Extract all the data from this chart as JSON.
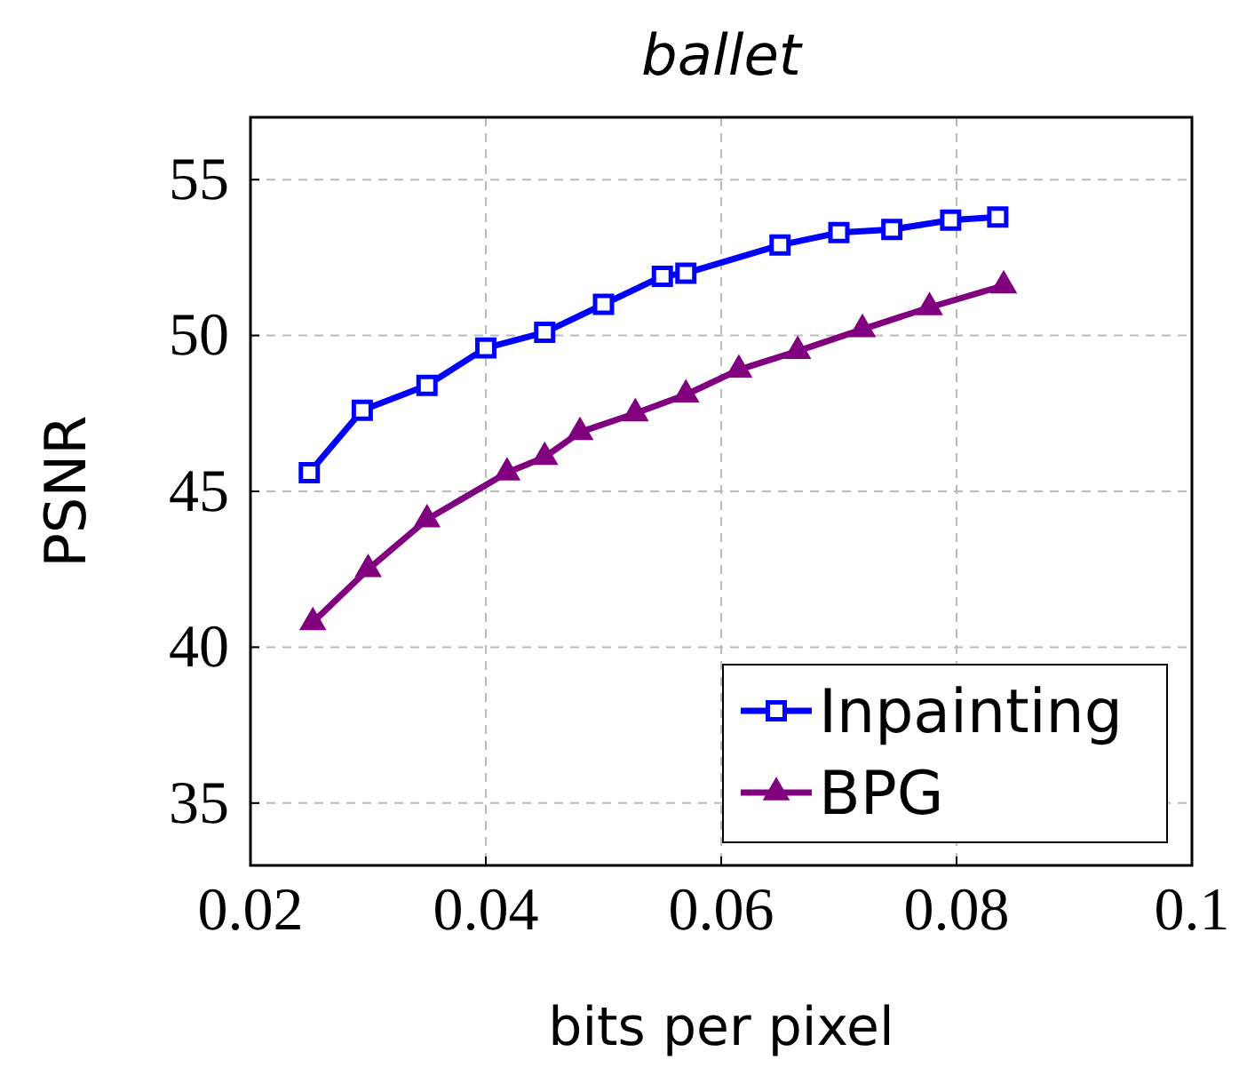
{
  "chart_data": {
    "type": "line",
    "title": "ballet",
    "xlabel": "bits per pixel",
    "ylabel": "PSNR",
    "xlim": [
      0.02,
      0.1
    ],
    "xticks": [
      0.02,
      0.04,
      0.06,
      0.08,
      0.1
    ],
    "ylim": [
      33,
      57
    ],
    "yticks": [
      35,
      40,
      45,
      50,
      55
    ],
    "grid": true,
    "legend": "bottom right",
    "series": [
      {
        "name": "Inpainting",
        "color": "#0000ff",
        "marker": "square",
        "x": [
          0.025,
          0.0295,
          0.035,
          0.04,
          0.045,
          0.05,
          0.055,
          0.057,
          0.065,
          0.07,
          0.0745,
          0.0795,
          0.0835
        ],
        "values": [
          45.6,
          47.6,
          48.4,
          49.6,
          50.1,
          51.0,
          51.9,
          52.0,
          52.9,
          53.3,
          53.4,
          53.7,
          53.8
        ]
      },
      {
        "name": "BPG",
        "color": "#800080",
        "marker": "triangle",
        "x": [
          0.0253,
          0.03,
          0.035,
          0.0418,
          0.045,
          0.048,
          0.0527,
          0.057,
          0.0615,
          0.0665,
          0.072,
          0.0777,
          0.084
        ],
        "values": [
          40.8,
          42.5,
          44.1,
          45.6,
          46.1,
          46.9,
          47.5,
          48.1,
          48.9,
          49.5,
          50.2,
          50.9,
          51.6
        ]
      }
    ]
  }
}
